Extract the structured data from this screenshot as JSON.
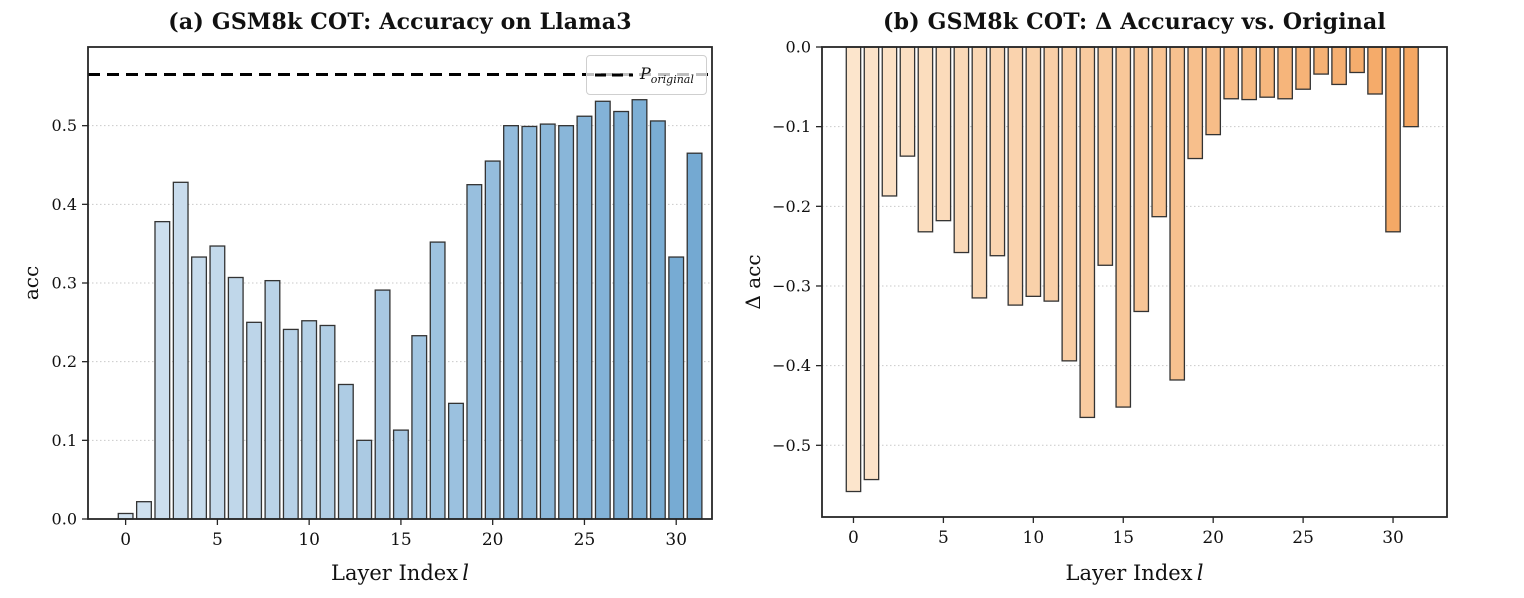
{
  "figure": {
    "background": "#ffffff"
  },
  "chart_data": [
    {
      "panel": "a",
      "type": "bar",
      "title": "(a) GSM8k COT: Accuracy on Llama3",
      "ylabel": "acc",
      "xlabel_main": "Layer Index",
      "xlabel_var": "l",
      "x": [
        0,
        1,
        2,
        3,
        4,
        5,
        6,
        7,
        8,
        9,
        10,
        11,
        12,
        13,
        14,
        15,
        16,
        17,
        18,
        19,
        20,
        21,
        22,
        23,
        24,
        25,
        26,
        27,
        28,
        29,
        30,
        31
      ],
      "values": [
        0.007,
        0.022,
        0.378,
        0.428,
        0.333,
        0.347,
        0.307,
        0.25,
        0.303,
        0.241,
        0.252,
        0.246,
        0.171,
        0.1,
        0.291,
        0.113,
        0.233,
        0.352,
        0.147,
        0.425,
        0.455,
        0.5,
        0.499,
        0.502,
        0.5,
        0.512,
        0.531,
        0.518,
        0.533,
        0.506,
        0.333,
        0.465
      ],
      "xlim": [
        -2.05,
        31.95
      ],
      "ylim": [
        0,
        0.6
      ],
      "xticks": [
        0,
        5,
        10,
        15,
        20,
        25,
        30
      ],
      "xtick_labels": [
        "0",
        "5",
        "10",
        "15",
        "20",
        "25",
        "30"
      ],
      "yticks": [
        0.0,
        0.1,
        0.2,
        0.3,
        0.4,
        0.5
      ],
      "ytick_labels": [
        "0.0",
        "0.1",
        "0.2",
        "0.3",
        "0.4",
        "0.5"
      ],
      "grid": "horizontal dotted",
      "ref_line": {
        "y": 0.565,
        "color": "#000000",
        "style": "dashed"
      },
      "legend": {
        "position": "upper right",
        "label_main": "P",
        "label_sub": "original"
      },
      "colors": {
        "bar_light": "#d2e2f0",
        "bar_dark": "#74a9d2",
        "edge": "#333333"
      }
    },
    {
      "panel": "b",
      "type": "bar",
      "title": "(b) GSM8k COT: Δ Accuracy vs. Original",
      "ylabel": "Δ acc",
      "xlabel_main": "Layer Index",
      "xlabel_var": "l",
      "x": [
        0,
        1,
        2,
        3,
        4,
        5,
        6,
        7,
        8,
        9,
        10,
        11,
        12,
        13,
        14,
        15,
        16,
        17,
        18,
        19,
        20,
        21,
        22,
        23,
        24,
        25,
        26,
        27,
        28,
        29,
        30,
        31
      ],
      "values": [
        -0.558,
        -0.543,
        -0.187,
        -0.137,
        -0.232,
        -0.218,
        -0.258,
        -0.315,
        -0.262,
        -0.324,
        -0.313,
        -0.319,
        -0.394,
        -0.465,
        -0.274,
        -0.452,
        -0.332,
        -0.213,
        -0.418,
        -0.14,
        -0.11,
        -0.065,
        -0.066,
        -0.063,
        -0.065,
        -0.053,
        -0.034,
        -0.047,
        -0.032,
        -0.059,
        -0.232,
        -0.1
      ],
      "xlim": [
        -1.75,
        33.0
      ],
      "ylim": [
        -0.59,
        0
      ],
      "xticks": [
        0,
        5,
        10,
        15,
        20,
        25,
        30
      ],
      "xtick_labels": [
        "0",
        "5",
        "10",
        "15",
        "20",
        "25",
        "30"
      ],
      "yticks": [
        0.0,
        -0.1,
        -0.2,
        -0.3,
        -0.4,
        -0.5
      ],
      "ytick_labels": [
        "0.0",
        "−0.1",
        "−0.2",
        "−0.3",
        "−0.4",
        "−0.5"
      ],
      "grid": "horizontal dotted",
      "ref_line": null,
      "legend": null,
      "colors": {
        "bar_light": "#fce5cc",
        "bar_dark": "#f4a763",
        "edge": "#333333"
      }
    }
  ]
}
